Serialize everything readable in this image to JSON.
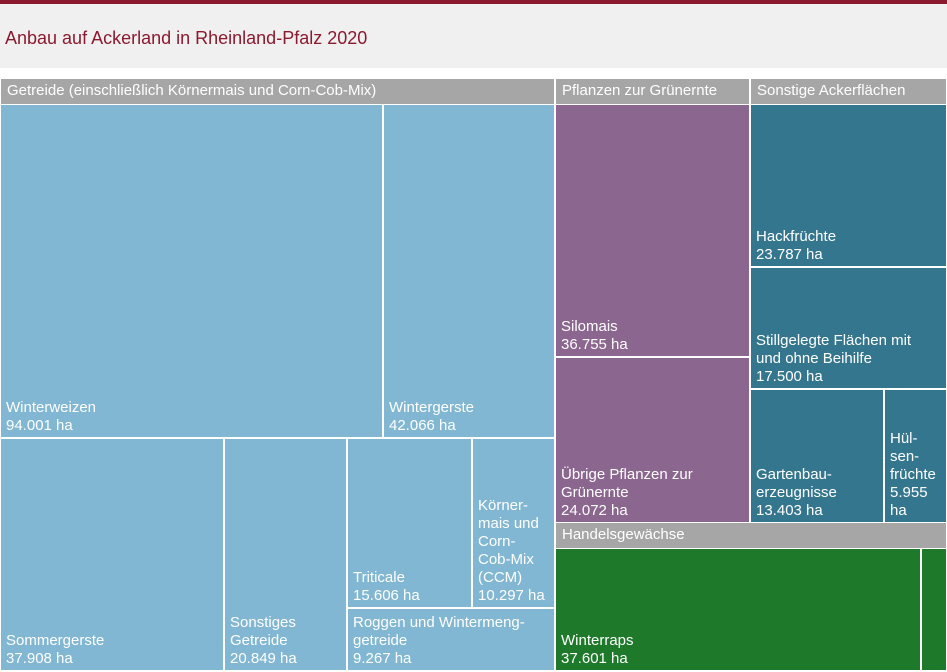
{
  "title": "Anbau auf Ackerland in Rheinland-Pfalz 2020",
  "colors": {
    "accent": "#8b1a2f",
    "header_bg": "#f0f0f0",
    "group_header": "#a6a6a6",
    "getreide": "#81b7d2",
    "gruenernte": "#8b668f",
    "sonstige": "#35768f",
    "handel": "#1e7a2a"
  },
  "chart_data": {
    "type": "treemap",
    "title": "Anbau auf Ackerland in Rheinland-Pfalz 2020",
    "unit": "ha",
    "groups": [
      {
        "name": "Getreide (einschließlich Körnermais und Corn-Cob-Mix)",
        "color": "#81b7d2",
        "items": [
          {
            "label": "Winterweizen",
            "value_text": "94.001 ha",
            "value": 94001
          },
          {
            "label": "Wintergerste",
            "value_text": "42.066 ha",
            "value": 42066
          },
          {
            "label": "Sommergerste",
            "value_text": "37.908 ha",
            "value": 37908
          },
          {
            "label": "Sonstiges\nGetreide",
            "value_text": "20.849 ha",
            "value": 20849
          },
          {
            "label": "Triticale",
            "value_text": "15.606 ha",
            "value": 15606
          },
          {
            "label": "Körner-\nmais und\nCorn-\nCob-Mix\n(CCM)",
            "value_text": "10.297 ha",
            "value": 10297
          },
          {
            "label": "Roggen und Wintermeng-\ngetreide",
            "value_text": "9.267 ha",
            "value": 9267
          }
        ]
      },
      {
        "name": "Pflanzen zur Grünernte",
        "color": "#8b668f",
        "items": [
          {
            "label": "Silomais",
            "value_text": "36.755 ha",
            "value": 36755
          },
          {
            "label": "Übrige Pflanzen zur\nGrünernte",
            "value_text": "24.072 ha",
            "value": 24072
          }
        ]
      },
      {
        "name": "Sonstige Ackerflächen",
        "color": "#35768f",
        "items": [
          {
            "label": "Hackfrüchte",
            "value_text": "23.787 ha",
            "value": 23787
          },
          {
            "label": "Stillgelegte Flächen mit\nund ohne Beihilfe",
            "value_text": "17.500 ha",
            "value": 17500
          },
          {
            "label": "Gartenbau-\nerzeugnisse",
            "value_text": "13.403 ha",
            "value": 13403
          },
          {
            "label": "Hül-\nsen-\nfrüchte",
            "value_text": "5.955\nha",
            "value": 5955
          }
        ]
      },
      {
        "name": "Handelsgewächse",
        "color": "#1e7a2a",
        "items": [
          {
            "label": "Winterraps",
            "value_text": "37.601 ha",
            "value": 37601
          },
          {
            "label": "",
            "value_text": "",
            "value": null
          }
        ]
      }
    ]
  }
}
